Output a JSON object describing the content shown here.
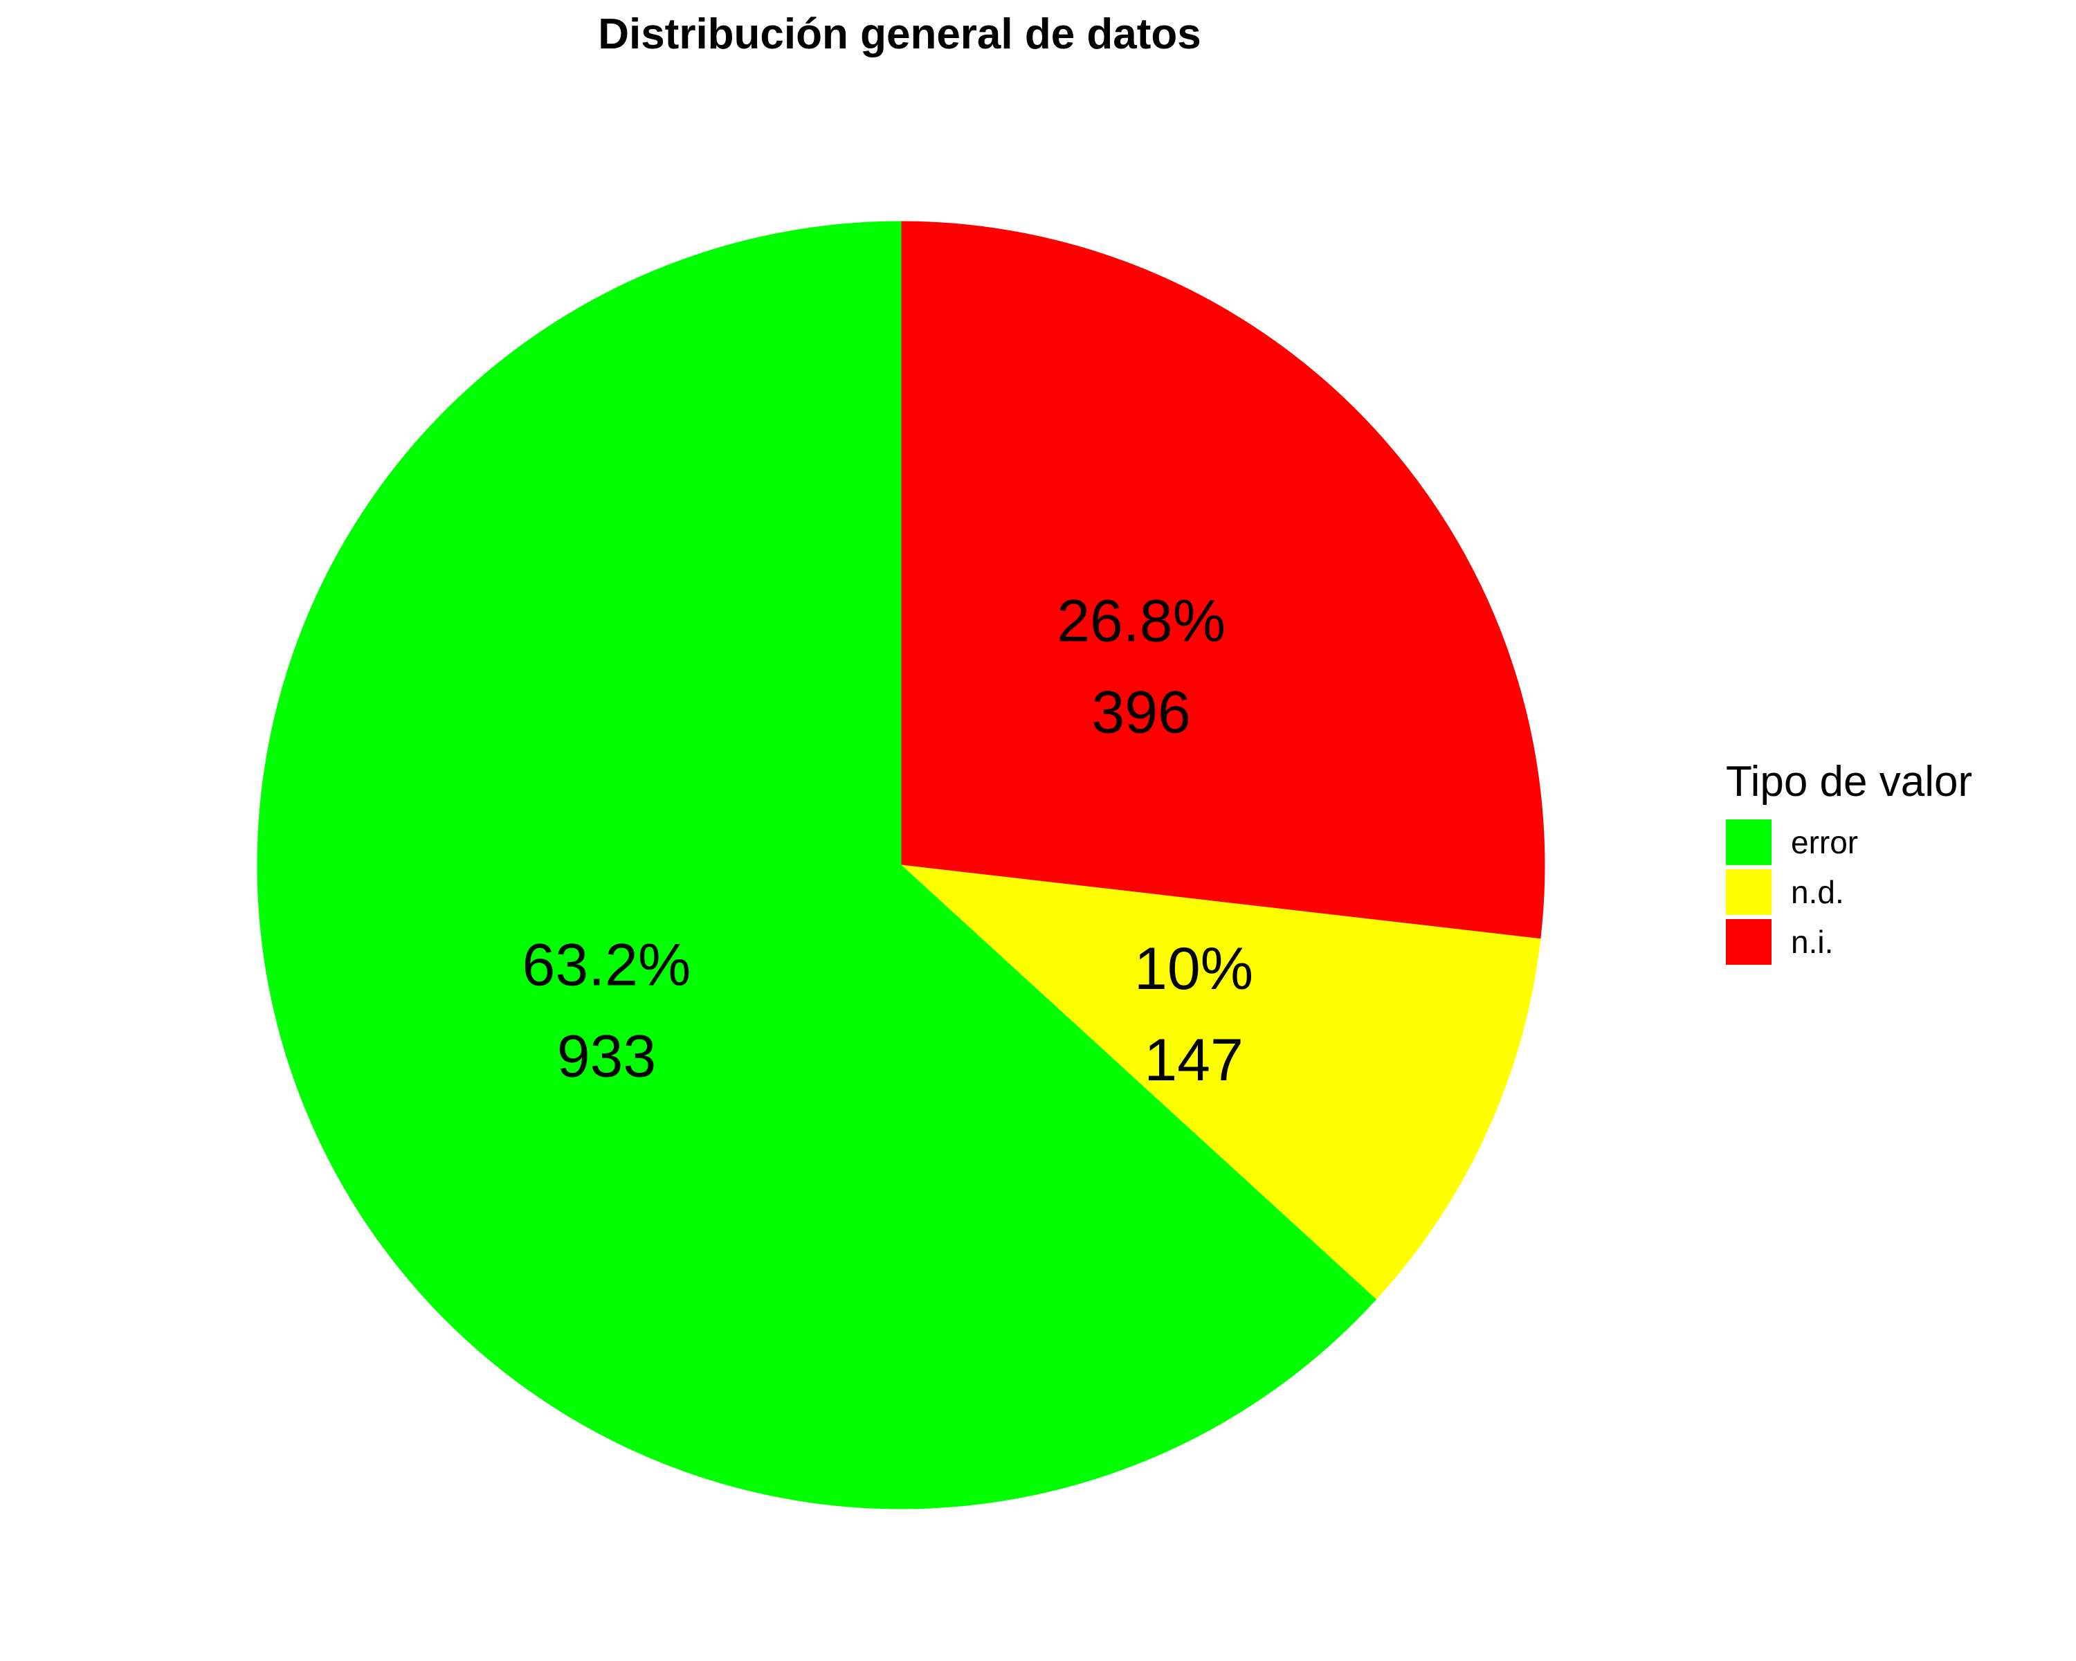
{
  "chart_data": {
    "type": "pie",
    "title": "Distribución general de datos",
    "legend": {
      "title": "Tipo de valor",
      "position": "right"
    },
    "slices": [
      {
        "label": "error",
        "value": 933,
        "percent_label": "63.2%",
        "color": "#00ff00"
      },
      {
        "label": "n.d.",
        "value": 147,
        "percent_label": "10%",
        "color": "#ffff00"
      },
      {
        "label": "n.i.",
        "value": 396,
        "percent_label": "26.8%",
        "color": "#ff0000"
      }
    ],
    "start": "12 o'clock",
    "direction": "counter-clockwise starting with error"
  }
}
